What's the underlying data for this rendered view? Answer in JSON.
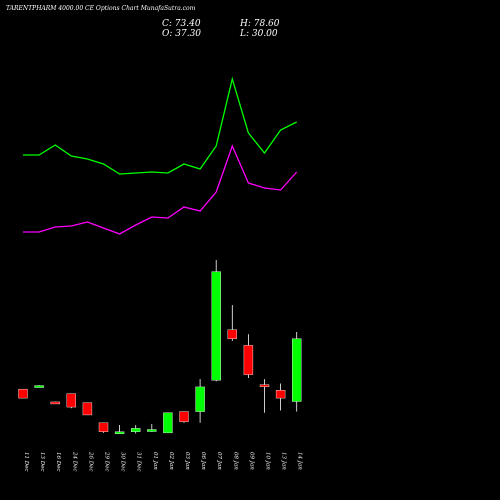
{
  "header": {
    "title": "TARENTPHARM 4000.00  CE Options  Chart MunafaSutra.com",
    "close_label": "C: 73.40",
    "open_label": "O: 37.30",
    "high_label": "H: 78.60",
    "low_label": "L: 30.00"
  },
  "chart_data": {
    "type": "candlestick",
    "background": "#000000",
    "up_color": "#00ff00",
    "down_color": "#ff0000",
    "categories": [
      "11 Dec",
      "13 Dec",
      "16 Dec",
      "24 Dec",
      "26 Dec",
      "29 Dec",
      "30 Dec",
      "31 Dec",
      "01 Jan",
      "02 Jan",
      "03 Jan",
      "06 Jan",
      "07 Jan",
      "08 Jan",
      "09 Jan",
      "10 Jan",
      "13 Jan",
      "14 Jan"
    ],
    "ohlc": [
      {
        "o": 21.0,
        "h": 21.0,
        "l": 17.0,
        "c": 17.0
      },
      {
        "o": 22.5,
        "h": 22.8,
        "l": 22.3,
        "c": 22.6
      },
      {
        "o": 15.3,
        "h": 15.5,
        "l": 14.5,
        "c": 14.8
      },
      {
        "o": 19.0,
        "h": 19.0,
        "l": 12.5,
        "c": 13.0
      },
      {
        "o": 15.0,
        "h": 15.0,
        "l": 9.5,
        "c": 9.5
      },
      {
        "o": 6.0,
        "h": 6.0,
        "l": 1.5,
        "c": 2.0
      },
      {
        "o": 1.5,
        "h": 5.0,
        "l": 1.0,
        "c": 2.0
      },
      {
        "o": 2.0,
        "h": 5.0,
        "l": 1.2,
        "c": 3.5
      },
      {
        "o": 2.5,
        "h": 5.5,
        "l": 2.0,
        "c": 3.0
      },
      {
        "o": 1.5,
        "h": 10.5,
        "l": 1.5,
        "c": 10.5
      },
      {
        "o": 11.0,
        "h": 11.0,
        "l": 6.0,
        "c": 6.5
      },
      {
        "o": 11.0,
        "h": 25.5,
        "l": 6.0,
        "c": 22.0
      },
      {
        "o": 25.0,
        "h": 78.6,
        "l": 24.5,
        "c": 73.4
      },
      {
        "o": 47.5,
        "h": 58.5,
        "l": 42.5,
        "c": 43.5
      },
      {
        "o": 40.5,
        "h": 45.5,
        "l": 26.0,
        "c": 27.5
      },
      {
        "o": 23.0,
        "h": 25.5,
        "l": 10.5,
        "c": 22.8
      },
      {
        "o": 20.5,
        "h": 23.5,
        "l": 11.5,
        "c": 17.0
      },
      {
        "o": 15.5,
        "h": 46.5,
        "l": 11.0,
        "c": 43.5
      }
    ],
    "series": [
      {
        "color": "#00ff00",
        "values": [
          155,
          155,
          145,
          156,
          159,
          164,
          174,
          173,
          172,
          173,
          164,
          169,
          146,
          79,
          133,
          153,
          130,
          122
        ]
      },
      {
        "color": "#ff00ff",
        "values": [
          232,
          232,
          227,
          226,
          222,
          228,
          234,
          225,
          217,
          218,
          207,
          211,
          192,
          146,
          183,
          188,
          190,
          172
        ]
      }
    ]
  }
}
